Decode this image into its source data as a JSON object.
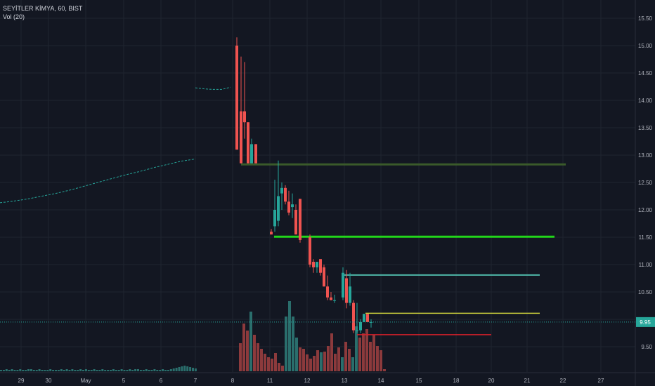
{
  "legend": {
    "symbol": "SEYİTLER KİMYA, 60, BIST",
    "volume": "Vol (20)"
  },
  "colors": {
    "up": "#26a69a",
    "down": "#ef5350",
    "up_vol": "#2a6e6c",
    "down_vol": "#8c3a3c",
    "grid": "#1f2430",
    "axis_text": "#b2b5be",
    "last_price_bg": "#26a69a"
  },
  "last_price_label": "9.95",
  "chart_data": {
    "type": "candlestick",
    "title": "",
    "xlabel": "",
    "ylabel": "",
    "ylim": [
      9.1,
      15.65
    ],
    "y_ticks": [
      "15.50",
      "15.00",
      "14.50",
      "14.00",
      "13.50",
      "13.00",
      "12.50",
      "12.00",
      "11.50",
      "11.00",
      "10.50",
      "10.00",
      "9.50"
    ],
    "x_ticks": [
      "29",
      "30",
      "May",
      "5",
      "6",
      "7",
      "8",
      "11",
      "12",
      "13",
      "14",
      "15",
      "18",
      "19",
      "20",
      "21",
      "22",
      "27"
    ],
    "pre_listing_line": [
      [
        0.0,
        12.13
      ],
      [
        0.5,
        12.16
      ],
      [
        1.0,
        12.2
      ],
      [
        1.5,
        12.25
      ],
      [
        2.0,
        12.3
      ],
      [
        2.5,
        12.36
      ],
      [
        3.0,
        12.43
      ],
      [
        3.5,
        12.5
      ],
      [
        4.0,
        12.57
      ],
      [
        4.5,
        12.64
      ],
      [
        5.0,
        12.7
      ],
      [
        5.5,
        12.77
      ],
      [
        6.0,
        12.83
      ],
      [
        6.5,
        12.89
      ],
      [
        7.0,
        12.93
      ]
    ],
    "pre_listing_segment": [
      [
        5.0,
        14.23
      ],
      [
        5.5,
        14.21
      ],
      [
        6.0,
        14.2
      ],
      [
        6.5,
        14.2
      ],
      [
        7.0,
        14.24
      ]
    ],
    "candles": [
      {
        "o": 15.0,
        "h": 15.15,
        "l": 13.1,
        "c": 13.1
      },
      {
        "o": 13.8,
        "h": 14.8,
        "l": 12.85,
        "c": 12.85
      },
      {
        "o": 13.8,
        "h": 14.7,
        "l": 13.3,
        "c": 13.6
      },
      {
        "o": 13.6,
        "h": 13.6,
        "l": 12.85,
        "c": 12.85
      },
      {
        "o": 12.85,
        "h": 13.3,
        "l": 12.85,
        "c": 13.2
      },
      {
        "o": 13.2,
        "h": 13.2,
        "l": 12.85,
        "c": 12.85
      },
      {
        "o": 11.6,
        "h": 11.65,
        "l": 11.55,
        "c": 11.55
      },
      {
        "o": 11.7,
        "h": 12.55,
        "l": 11.6,
        "c": 12.0
      },
      {
        "o": 11.8,
        "h": 12.9,
        "l": 11.7,
        "c": 12.25
      },
      {
        "o": 12.3,
        "h": 12.5,
        "l": 12.0,
        "c": 12.4
      },
      {
        "o": 12.4,
        "h": 12.45,
        "l": 12.1,
        "c": 12.15
      },
      {
        "o": 12.15,
        "h": 12.35,
        "l": 11.9,
        "c": 11.95
      },
      {
        "o": 12.05,
        "h": 12.3,
        "l": 11.85,
        "c": 12.1
      },
      {
        "o": 12.0,
        "h": 12.1,
        "l": 11.55,
        "c": 11.55
      },
      {
        "o": 12.2,
        "h": 12.2,
        "l": 11.4,
        "c": 11.45
      },
      {
        "o": 11.5,
        "h": 11.55,
        "l": 10.95,
        "c": 11.0
      },
      {
        "o": 11.05,
        "h": 11.1,
        "l": 10.85,
        "c": 10.95
      },
      {
        "o": 10.95,
        "h": 11.05,
        "l": 10.85,
        "c": 11.05
      },
      {
        "o": 11.1,
        "h": 11.1,
        "l": 10.8,
        "c": 10.85
      },
      {
        "o": 10.95,
        "h": 11.0,
        "l": 10.6,
        "c": 10.6
      },
      {
        "o": 10.6,
        "h": 10.8,
        "l": 10.35,
        "c": 10.4
      },
      {
        "o": 10.4,
        "h": 10.5,
        "l": 10.35,
        "c": 10.35
      },
      {
        "o": 10.35,
        "h": 10.45,
        "l": 10.3,
        "c": 10.35
      },
      {
        "o": 10.4,
        "h": 10.95,
        "l": 10.35,
        "c": 10.85
      },
      {
        "o": 10.75,
        "h": 10.9,
        "l": 10.2,
        "c": 10.3
      },
      {
        "o": 10.3,
        "h": 10.85,
        "l": 10.25,
        "c": 10.6
      },
      {
        "o": 10.3,
        "h": 10.35,
        "l": 9.75,
        "c": 9.8
      },
      {
        "o": 9.8,
        "h": 10.3,
        "l": 9.75,
        "c": 9.8
      },
      {
        "o": 9.8,
        "h": 10.0,
        "l": 9.75,
        "c": 9.95
      },
      {
        "o": 9.95,
        "h": 10.1,
        "l": 9.95,
        "c": 10.1
      },
      {
        "o": 10.1,
        "h": 10.1,
        "l": 9.95,
        "c": 9.95
      },
      {
        "o": 9.95,
        "h": 10.0,
        "l": 9.85,
        "c": 9.95
      }
    ],
    "volume": [
      [
        0.25,
        [
          2,
          2,
          3,
          2,
          3,
          2,
          2,
          3,
          2,
          2,
          3,
          3,
          2,
          2,
          3,
          2,
          2,
          2,
          3,
          2,
          2,
          2,
          3,
          2,
          3,
          2,
          3,
          2,
          2,
          3,
          2,
          3,
          2,
          2,
          3,
          2,
          2,
          3,
          2,
          2,
          2,
          3,
          2,
          2,
          3,
          2,
          2,
          3,
          2,
          3,
          3,
          2,
          2,
          3,
          2,
          2,
          3,
          2,
          2,
          3,
          2,
          2,
          3,
          4,
          5,
          6,
          7,
          8,
          7,
          6,
          5,
          4
        ]
      ],
      [
        0.28,
        [
          40,
          68,
          58,
          85,
          52,
          40,
          32,
          25,
          20,
          18,
          26,
          12,
          8,
          78,
          100,
          78,
          48,
          34,
          32,
          24,
          18,
          22,
          30,
          27,
          28,
          36,
          54,
          25,
          34,
          20,
          42,
          32,
          20,
          64,
          48,
          54,
          60,
          42,
          52,
          36,
          30,
          3
        ]
      ]
    ],
    "levels": [
      {
        "y": 12.83,
        "x0": 343,
        "x1": 805,
        "color": "#3a5a2a",
        "width": 3
      },
      {
        "y": 11.51,
        "x0": 390,
        "x1": 789,
        "color": "#22d61a",
        "width": 3
      },
      {
        "y": 10.81,
        "x0": 490,
        "x1": 768,
        "color": "#4fb7a8",
        "width": 2
      },
      {
        "y": 10.11,
        "x0": 520,
        "x1": 768,
        "color": "#c8cc3c",
        "width": 1.5
      },
      {
        "y": 9.72,
        "x0": 508,
        "x1": 699,
        "color": "#d6202a",
        "width": 1.5
      }
    ]
  }
}
